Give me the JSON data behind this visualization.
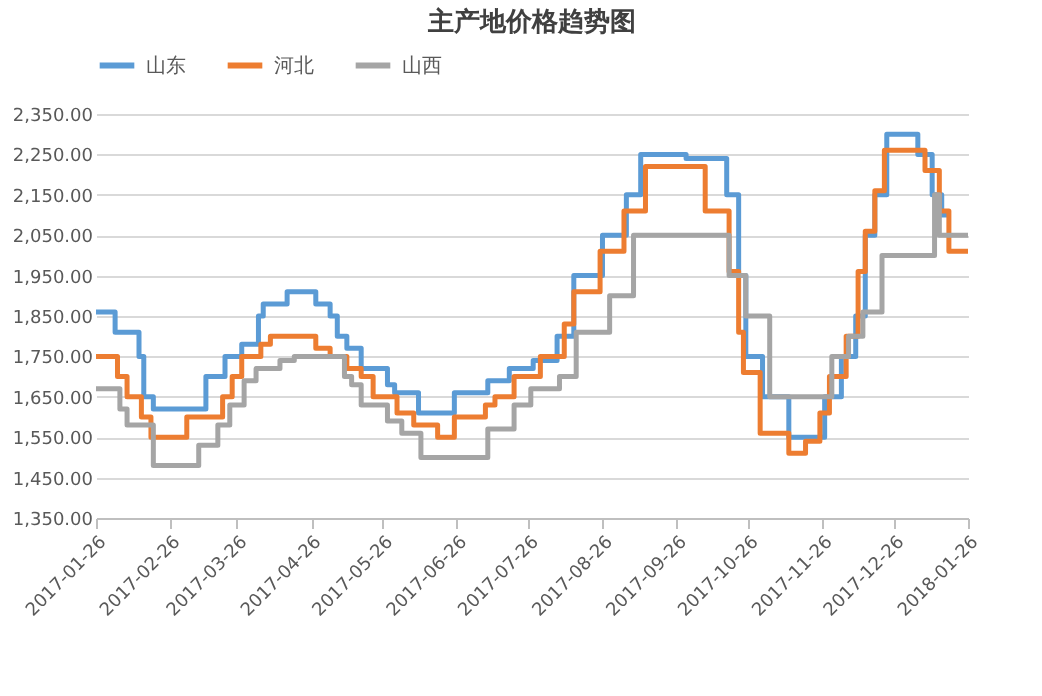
{
  "chart_data": {
    "type": "step",
    "title": "主产地价格趋势图",
    "ylim": [
      1350,
      2350
    ],
    "yticks": [
      {
        "value": 1350,
        "label": "1,350.00"
      },
      {
        "value": 1450,
        "label": "1,450.00"
      },
      {
        "value": 1550,
        "label": "1,550.00"
      },
      {
        "value": 1650,
        "label": "1,650.00"
      },
      {
        "value": 1750,
        "label": "1,750.00"
      },
      {
        "value": 1850,
        "label": "1,850.00"
      },
      {
        "value": 1950,
        "label": "1,950.00"
      },
      {
        "value": 2050,
        "label": "2,050.00"
      },
      {
        "value": 2150,
        "label": "2,150.00"
      },
      {
        "value": 2250,
        "label": "2,250.00"
      },
      {
        "value": 2350,
        "label": "2,350.00"
      }
    ],
    "xlim": [
      "2017-01-26",
      "2018-01-26"
    ],
    "xticks": [
      "2017-01-26",
      "2017-02-26",
      "2017-03-26",
      "2017-04-26",
      "2017-05-26",
      "2017-06-26",
      "2017-07-26",
      "2017-08-26",
      "2017-09-26",
      "2017-10-26",
      "2017-11-26",
      "2017-12-26",
      "2018-01-26"
    ],
    "grid": "y",
    "legend": "top",
    "marker": "none",
    "line_style": "solid",
    "series": [
      {
        "name": "山东",
        "color": "#5b9bd5",
        "x": [
          "2017-01-26",
          "2017-02-03",
          "2017-02-13",
          "2017-02-15",
          "2017-02-19",
          "2017-03-13",
          "2017-03-21",
          "2017-03-28",
          "2017-04-04",
          "2017-04-06",
          "2017-04-16",
          "2017-04-28",
          "2017-05-04",
          "2017-05-07",
          "2017-05-11",
          "2017-05-17",
          "2017-05-28",
          "2017-05-31",
          "2017-06-10",
          "2017-06-25",
          "2017-07-09",
          "2017-07-18",
          "2017-07-28",
          "2017-08-07",
          "2017-08-14",
          "2017-08-26",
          "2017-09-05",
          "2017-09-11",
          "2017-09-30",
          "2017-10-17",
          "2017-10-22",
          "2017-10-25",
          "2017-11-01",
          "2017-11-12",
          "2017-11-27",
          "2017-12-04",
          "2017-12-10",
          "2017-12-14",
          "2017-12-18",
          "2017-12-23",
          "2018-01-05",
          "2018-01-11",
          "2018-01-15",
          "2018-01-18"
        ],
        "values": [
          1860,
          1810,
          1750,
          1650,
          1620,
          1700,
          1750,
          1780,
          1850,
          1880,
          1910,
          1880,
          1850,
          1800,
          1770,
          1720,
          1680,
          1660,
          1610,
          1660,
          1690,
          1720,
          1740,
          1800,
          1950,
          2050,
          2150,
          2250,
          2240,
          2150,
          1950,
          1750,
          1650,
          1550,
          1650,
          1750,
          1850,
          2050,
          2150,
          2300,
          2250,
          2150,
          2100,
          2100
        ]
      },
      {
        "name": "河北",
        "color": "#ed7d31",
        "x": [
          "2017-01-26",
          "2017-02-04",
          "2017-02-08",
          "2017-02-14",
          "2017-02-18",
          "2017-03-05",
          "2017-03-20",
          "2017-03-24",
          "2017-03-28",
          "2017-04-05",
          "2017-04-09",
          "2017-04-28",
          "2017-05-04",
          "2017-05-11",
          "2017-05-17",
          "2017-05-22",
          "2017-06-01",
          "2017-06-08",
          "2017-06-18",
          "2017-06-25",
          "2017-07-08",
          "2017-07-12",
          "2017-07-20",
          "2017-07-31",
          "2017-08-10",
          "2017-08-14",
          "2017-08-25",
          "2017-09-04",
          "2017-09-13",
          "2017-10-08",
          "2017-10-18",
          "2017-10-22",
          "2017-10-24",
          "2017-10-31",
          "2017-11-12",
          "2017-11-19",
          "2017-11-25",
          "2017-11-29",
          "2017-12-06",
          "2017-12-11",
          "2017-12-14",
          "2017-12-18",
          "2017-12-22",
          "2018-01-08",
          "2018-01-14",
          "2018-01-18",
          "2018-01-26"
        ],
        "values": [
          1750,
          1700,
          1650,
          1600,
          1550,
          1600,
          1650,
          1700,
          1750,
          1780,
          1800,
          1770,
          1750,
          1720,
          1700,
          1650,
          1610,
          1580,
          1550,
          1600,
          1630,
          1650,
          1700,
          1750,
          1830,
          1910,
          2010,
          2110,
          2220,
          2110,
          1960,
          1810,
          1710,
          1560,
          1510,
          1540,
          1610,
          1700,
          1800,
          1960,
          2060,
          2160,
          2260,
          2210,
          2110,
          2010,
          2010
        ]
      },
      {
        "name": "山西",
        "color": "#a5a5a5",
        "x": [
          "2017-01-26",
          "2017-02-05",
          "2017-02-08",
          "2017-02-19",
          "2017-03-10",
          "2017-03-18",
          "2017-03-23",
          "2017-03-29",
          "2017-04-03",
          "2017-04-13",
          "2017-04-19",
          "2017-05-10",
          "2017-05-13",
          "2017-05-17",
          "2017-05-28",
          "2017-06-03",
          "2017-06-11",
          "2017-07-09",
          "2017-07-20",
          "2017-07-27",
          "2017-08-08",
          "2017-08-15",
          "2017-08-29",
          "2017-09-08",
          "2017-10-18",
          "2017-10-25",
          "2017-11-04",
          "2017-11-30",
          "2017-12-07",
          "2017-12-13",
          "2017-12-21",
          "2018-01-12",
          "2018-01-14",
          "2018-01-26"
        ],
        "values": [
          1670,
          1620,
          1580,
          1480,
          1530,
          1580,
          1630,
          1690,
          1720,
          1740,
          1750,
          1700,
          1680,
          1630,
          1590,
          1560,
          1500,
          1570,
          1630,
          1670,
          1700,
          1810,
          1900,
          2050,
          1950,
          1850,
          1650,
          1750,
          1800,
          1860,
          2000,
          2150,
          2050,
          2050
        ]
      }
    ]
  }
}
